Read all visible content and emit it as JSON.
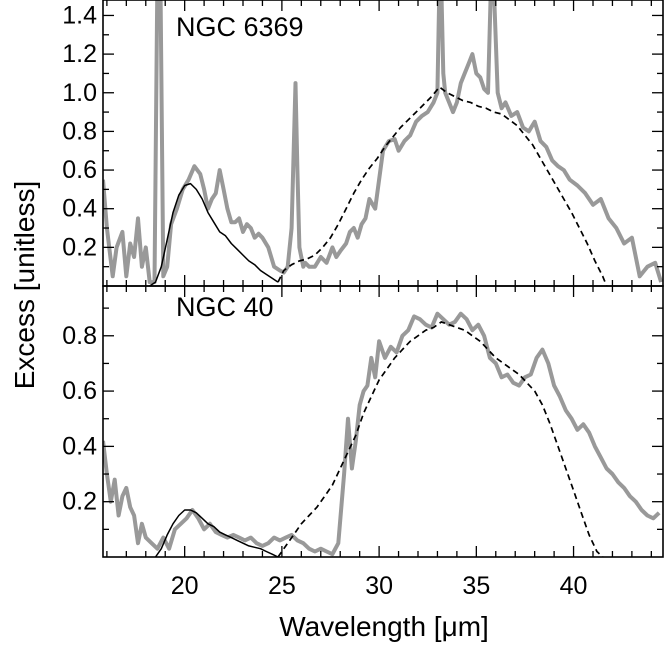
{
  "chart_data": {
    "type": "line",
    "xlabel": "Wavelength [μm]",
    "ylabel": "Excess [unitless]",
    "xlim": [
      15.8,
      44.6
    ],
    "x_ticks": [
      20,
      25,
      30,
      35,
      40
    ],
    "grid": false,
    "colors": {
      "observed": "#999999",
      "model": "#000000"
    },
    "panels": [
      {
        "title": "NGC 6369",
        "ylim": [
          0.0,
          1.48
        ],
        "y_ticks": [
          0.2,
          0.4,
          0.6,
          0.8,
          1.0,
          1.2,
          1.4
        ],
        "series": [
          {
            "style": "thick-gray-solid",
            "x": [
              15.8,
              16.0,
              16.3,
              16.5,
              16.8,
              17.0,
              17.2,
              17.4,
              17.6,
              17.8,
              18.0,
              18.2,
              18.45,
              18.6,
              18.75,
              18.9,
              19.1,
              19.3,
              19.6,
              19.9,
              20.2,
              20.5,
              20.8,
              21.0,
              21.2,
              21.4,
              21.6,
              21.8,
              22.0,
              22.2,
              22.4,
              22.6,
              22.8,
              23.0,
              23.2,
              23.4,
              23.6,
              23.8,
              24.0,
              24.3,
              24.6,
              24.9,
              25.1,
              25.3,
              25.5,
              25.7,
              25.8,
              25.9,
              26.0,
              26.1,
              26.2,
              26.4,
              26.7,
              27.0,
              27.3,
              27.6,
              27.8,
              28.0,
              28.3,
              28.5,
              28.7,
              28.9,
              29.1,
              29.3,
              29.5,
              29.8,
              30.0,
              30.2,
              30.5,
              30.8,
              31.0,
              31.3,
              31.6,
              31.9,
              32.2,
              32.5,
              32.8,
              33.0,
              33.1,
              33.2,
              33.3,
              33.4,
              33.6,
              33.8,
              34.0,
              34.2,
              34.4,
              34.6,
              34.8,
              35.0,
              35.2,
              35.4,
              35.6,
              35.75,
              35.9,
              36.1,
              36.3,
              36.5,
              36.8,
              37.1,
              37.4,
              37.7,
              38.0,
              38.3,
              38.6,
              38.9,
              39.2,
              39.5,
              39.8,
              40.2,
              40.6,
              41.0,
              41.4,
              41.8,
              42.2,
              42.6,
              43.0,
              43.4,
              43.8,
              44.2,
              44.5
            ],
            "y": [
              0.55,
              0.3,
              0.05,
              0.2,
              0.28,
              0.05,
              0.22,
              0.15,
              0.35,
              0.1,
              0.2,
              0.02,
              0.02,
              1.6,
              1.6,
              0.05,
              0.1,
              0.32,
              0.4,
              0.5,
              0.55,
              0.62,
              0.58,
              0.5,
              0.4,
              0.45,
              0.48,
              0.6,
              0.5,
              0.4,
              0.33,
              0.33,
              0.35,
              0.28,
              0.32,
              0.3,
              0.25,
              0.27,
              0.25,
              0.2,
              0.1,
              0.08,
              0.07,
              0.1,
              0.3,
              1.05,
              0.6,
              0.2,
              0.15,
              0.1,
              0.12,
              0.1,
              0.1,
              0.15,
              0.12,
              0.2,
              0.15,
              0.18,
              0.22,
              0.28,
              0.3,
              0.25,
              0.32,
              0.35,
              0.45,
              0.4,
              0.55,
              0.7,
              0.75,
              0.76,
              0.7,
              0.75,
              0.78,
              0.85,
              0.88,
              0.9,
              0.95,
              1.0,
              1.55,
              1.55,
              1.1,
              1.0,
              0.95,
              0.9,
              0.95,
              1.05,
              1.1,
              1.15,
              1.2,
              1.1,
              1.08,
              1.02,
              1.0,
              1.55,
              1.55,
              1.0,
              0.92,
              0.95,
              0.88,
              0.9,
              0.82,
              0.8,
              0.85,
              0.75,
              0.72,
              0.65,
              0.62,
              0.6,
              0.55,
              0.52,
              0.48,
              0.42,
              0.45,
              0.35,
              0.3,
              0.22,
              0.25,
              0.05,
              0.1,
              0.12,
              0.02
            ]
          },
          {
            "style": "thin-black-solid",
            "x": [
              18.2,
              18.5,
              18.8,
              19.1,
              19.4,
              19.7,
              20.0,
              20.3,
              20.6,
              20.9,
              21.2,
              21.5,
              21.8,
              22.1,
              22.4,
              22.7,
              23.0,
              23.3,
              23.6,
              23.9,
              24.2,
              24.5,
              24.8
            ],
            "y": [
              0.0,
              0.02,
              0.1,
              0.24,
              0.38,
              0.47,
              0.52,
              0.53,
              0.5,
              0.45,
              0.38,
              0.33,
              0.28,
              0.26,
              0.22,
              0.19,
              0.16,
              0.13,
              0.11,
              0.08,
              0.06,
              0.04,
              0.02
            ]
          },
          {
            "style": "thin-black-dashed",
            "x": [
              24.8,
              25.1,
              25.5,
              25.9,
              26.3,
              26.7,
              27.1,
              27.5,
              27.9,
              28.3,
              28.7,
              29.1,
              29.5,
              29.9,
              30.3,
              30.7,
              31.1,
              31.5,
              31.9,
              32.3,
              32.7,
              33.1,
              33.5,
              33.9,
              34.3,
              34.7,
              35.1,
              35.5,
              35.9,
              36.3,
              36.7,
              37.1,
              37.5,
              37.9,
              38.3,
              38.7,
              39.1,
              39.5,
              39.9,
              40.3,
              40.7,
              41.1,
              41.5,
              41.7
            ],
            "y": [
              0.02,
              0.08,
              0.11,
              0.13,
              0.14,
              0.16,
              0.2,
              0.25,
              0.32,
              0.4,
              0.48,
              0.55,
              0.61,
              0.66,
              0.72,
              0.77,
              0.82,
              0.86,
              0.9,
              0.94,
              0.98,
              1.03,
              1.0,
              0.98,
              0.96,
              0.95,
              0.93,
              0.92,
              0.9,
              0.89,
              0.86,
              0.83,
              0.78,
              0.73,
              0.66,
              0.59,
              0.52,
              0.45,
              0.38,
              0.3,
              0.22,
              0.13,
              0.05,
              0.0
            ]
          }
        ]
      },
      {
        "title": "NGC 40",
        "ylim": [
          0.0,
          0.98
        ],
        "y_ticks": [
          0.2,
          0.4,
          0.6,
          0.8
        ],
        "series": [
          {
            "style": "thick-gray-solid",
            "x": [
              15.8,
              16.0,
              16.2,
              16.4,
              16.6,
              16.8,
              17.0,
              17.2,
              17.4,
              17.6,
              17.8,
              18.0,
              18.3,
              18.6,
              18.9,
              19.2,
              19.5,
              19.8,
              20.1,
              20.4,
              20.7,
              21.0,
              21.3,
              21.6,
              21.9,
              22.2,
              22.5,
              22.8,
              23.1,
              23.4,
              23.7,
              24.0,
              24.3,
              24.6,
              24.9,
              25.2,
              25.5,
              25.8,
              26.1,
              26.4,
              26.7,
              27.0,
              27.3,
              27.6,
              27.9,
              28.2,
              28.4,
              28.6,
              28.8,
              29.0,
              29.2,
              29.4,
              29.6,
              29.8,
              30.0,
              30.3,
              30.6,
              30.9,
              31.2,
              31.5,
              31.8,
              32.1,
              32.4,
              32.7,
              33.0,
              33.3,
              33.6,
              33.9,
              34.2,
              34.5,
              34.8,
              35.1,
              35.4,
              35.7,
              36.0,
              36.3,
              36.6,
              36.9,
              37.2,
              37.5,
              37.8,
              38.1,
              38.4,
              38.7,
              39.0,
              39.3,
              39.6,
              39.9,
              40.2,
              40.5,
              40.8,
              41.1,
              41.4,
              41.7,
              42.0,
              42.3,
              42.6,
              42.9,
              43.2,
              43.5,
              43.8,
              44.1,
              44.4
            ],
            "y": [
              0.42,
              0.3,
              0.2,
              0.28,
              0.15,
              0.22,
              0.25,
              0.18,
              0.15,
              0.05,
              0.12,
              0.07,
              0.05,
              0.03,
              0.07,
              0.03,
              0.1,
              0.12,
              0.14,
              0.17,
              0.14,
              0.1,
              0.12,
              0.09,
              0.08,
              0.07,
              0.08,
              0.07,
              0.06,
              0.07,
              0.05,
              0.04,
              0.05,
              0.07,
              0.06,
              0.07,
              0.08,
              0.06,
              0.05,
              0.03,
              0.02,
              0.03,
              0.02,
              0.01,
              0.05,
              0.3,
              0.5,
              0.32,
              0.42,
              0.55,
              0.6,
              0.62,
              0.72,
              0.65,
              0.78,
              0.72,
              0.76,
              0.74,
              0.8,
              0.82,
              0.87,
              0.86,
              0.84,
              0.83,
              0.88,
              0.86,
              0.84,
              0.85,
              0.88,
              0.86,
              0.82,
              0.84,
              0.8,
              0.72,
              0.7,
              0.65,
              0.66,
              0.63,
              0.62,
              0.65,
              0.66,
              0.72,
              0.75,
              0.7,
              0.62,
              0.58,
              0.53,
              0.5,
              0.46,
              0.48,
              0.45,
              0.4,
              0.36,
              0.32,
              0.3,
              0.27,
              0.25,
              0.22,
              0.2,
              0.17,
              0.15,
              0.14,
              0.16
            ]
          },
          {
            "style": "thin-black-solid",
            "x": [
              18.5,
              18.8,
              19.1,
              19.4,
              19.7,
              20.0,
              20.3,
              20.6,
              20.9,
              21.2,
              21.5,
              21.8,
              22.1,
              22.4,
              22.7,
              23.0,
              23.3,
              23.6,
              23.9,
              24.2,
              24.5,
              24.8
            ],
            "y": [
              0.0,
              0.03,
              0.08,
              0.12,
              0.15,
              0.17,
              0.17,
              0.16,
              0.14,
              0.12,
              0.11,
              0.09,
              0.08,
              0.07,
              0.06,
              0.05,
              0.04,
              0.035,
              0.03,
              0.02,
              0.01,
              0.0
            ]
          },
          {
            "style": "thin-black-dashed",
            "x": [
              24.8,
              25.2,
              25.6,
              26.0,
              26.4,
              26.8,
              27.2,
              27.6,
              28.0,
              28.4,
              28.8,
              29.2,
              29.6,
              30.0,
              30.4,
              30.8,
              31.2,
              31.6,
              32.0,
              32.4,
              32.8,
              33.2,
              33.6,
              34.0,
              34.4,
              34.8,
              35.2,
              35.6,
              36.0,
              36.4,
              36.8,
              37.2,
              37.6,
              38.0,
              38.4,
              38.8,
              39.2,
              39.6,
              40.0,
              40.4,
              40.8,
              41.2,
              41.5
            ],
            "y": [
              0.0,
              0.04,
              0.08,
              0.12,
              0.15,
              0.18,
              0.22,
              0.26,
              0.32,
              0.38,
              0.44,
              0.52,
              0.58,
              0.64,
              0.68,
              0.72,
              0.75,
              0.78,
              0.8,
              0.82,
              0.83,
              0.85,
              0.84,
              0.83,
              0.82,
              0.8,
              0.78,
              0.75,
              0.72,
              0.7,
              0.68,
              0.66,
              0.63,
              0.6,
              0.55,
              0.48,
              0.4,
              0.32,
              0.24,
              0.16,
              0.08,
              0.02,
              0.0
            ]
          }
        ]
      }
    ]
  }
}
